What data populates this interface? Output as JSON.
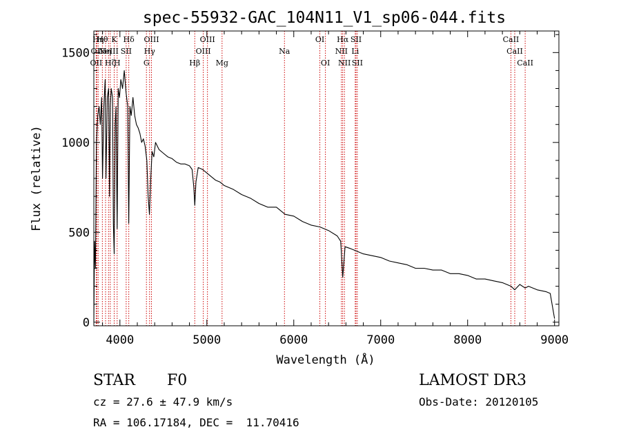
{
  "chart_data": {
    "type": "line",
    "title": "spec-55932-GAC_104N11_V1_sp06-044.fits",
    "xlabel": "Wavelength (Å)",
    "ylabel": "Flux (relative)",
    "xlim": [
      3700,
      9050
    ],
    "ylim": [
      -20,
      1620
    ],
    "xticks": [
      4000,
      5000,
      6000,
      7000,
      8000,
      9000
    ],
    "xtick_labels": [
      "4000",
      "5000",
      "6000",
      "7000",
      "8000",
      "9000"
    ],
    "yticks": [
      0,
      500,
      1000,
      1500
    ],
    "ytick_labels": [
      "0",
      "500",
      "1000",
      "1500"
    ],
    "grid": false,
    "legend": "none",
    "series": [
      {
        "name": "flux",
        "x": [
          3700,
          3708,
          3718,
          3730,
          3745,
          3760,
          3775,
          3790,
          3800,
          3815,
          3830,
          3840,
          3855,
          3870,
          3880,
          3889,
          3900,
          3915,
          3925,
          3934,
          3945,
          3955,
          3968,
          3980,
          3995,
          4010,
          4030,
          4050,
          4070,
          4090,
          4102,
          4115,
          4130,
          4150,
          4170,
          4190,
          4210,
          4230,
          4250,
          4270,
          4290,
          4310,
          4325,
          4340,
          4355,
          4370,
          4390,
          4410,
          4450,
          4500,
          4550,
          4600,
          4650,
          4700,
          4750,
          4800,
          4830,
          4850,
          4861,
          4875,
          4900,
          4950,
          5000,
          5050,
          5100,
          5150,
          5200,
          5300,
          5400,
          5500,
          5600,
          5700,
          5800,
          5900,
          6000,
          6100,
          6200,
          6300,
          6400,
          6500,
          6540,
          6563,
          6590,
          6650,
          6700,
          6800,
          6900,
          7000,
          7100,
          7200,
          7300,
          7400,
          7500,
          7600,
          7700,
          7800,
          7900,
          8000,
          8100,
          8200,
          8300,
          8400,
          8500,
          8542,
          8600,
          8662,
          8700,
          8800,
          8900,
          8950,
          9000
        ],
        "values": [
          0,
          450,
          300,
          1000,
          1150,
          1200,
          1100,
          1250,
          800,
          1200,
          1350,
          800,
          1250,
          1300,
          700,
          1200,
          1300,
          1250,
          550,
          380,
          1100,
          1200,
          520,
          1300,
          1250,
          1350,
          1300,
          1400,
          1280,
          1200,
          550,
          1200,
          1150,
          1250,
          1150,
          1100,
          1080,
          1050,
          1000,
          1020,
          980,
          900,
          700,
          600,
          800,
          950,
          920,
          1000,
          960,
          940,
          920,
          910,
          890,
          880,
          880,
          870,
          850,
          750,
          650,
          780,
          860,
          850,
          830,
          810,
          790,
          780,
          760,
          740,
          710,
          690,
          660,
          640,
          640,
          600,
          590,
          560,
          540,
          530,
          510,
          480,
          450,
          250,
          420,
          410,
          400,
          380,
          370,
          360,
          340,
          330,
          320,
          300,
          300,
          290,
          290,
          270,
          270,
          260,
          240,
          240,
          230,
          220,
          200,
          180,
          210,
          190,
          200,
          180,
          170,
          160,
          20
        ]
      }
    ],
    "line_annotations": [
      {
        "wavelength": 3727,
        "label": "OII",
        "row": 2
      },
      {
        "wavelength": 3735,
        "label": "OII",
        "row": 1
      },
      {
        "wavelength": 3750,
        "label": "Hη",
        "row": 0
      },
      {
        "wavelength": 3798,
        "label": "Hθ",
        "row": 0
      },
      {
        "wavelength": 3835,
        "label": "Hη",
        "row": 1
      },
      {
        "wavelength": 3869,
        "label": "NeIII",
        "row": 1
      },
      {
        "wavelength": 3889,
        "label": "Hζ",
        "row": 2
      },
      {
        "wavelength": 3934,
        "label": "K",
        "row": 0
      },
      {
        "wavelength": 3968,
        "label": "H",
        "row": 2
      },
      {
        "wavelength": 4072,
        "label": "SII",
        "row": 1
      },
      {
        "wavelength": 4102,
        "label": "Hδ",
        "row": 0
      },
      {
        "wavelength": 4305,
        "label": "G",
        "row": 2
      },
      {
        "wavelength": 4341,
        "label": "Hγ",
        "row": 1
      },
      {
        "wavelength": 4363,
        "label": "OIII",
        "row": 0
      },
      {
        "wavelength": 4861,
        "label": "Hβ",
        "row": 2
      },
      {
        "wavelength": 4959,
        "label": "OIII",
        "row": 1
      },
      {
        "wavelength": 5007,
        "label": "OIII",
        "row": 0
      },
      {
        "wavelength": 5175,
        "label": "Mg",
        "row": 2
      },
      {
        "wavelength": 5893,
        "label": "Na",
        "row": 1
      },
      {
        "wavelength": 6300,
        "label": "OI",
        "row": 0
      },
      {
        "wavelength": 6364,
        "label": "OI",
        "row": 2
      },
      {
        "wavelength": 6548,
        "label": "NII",
        "row": 1
      },
      {
        "wavelength": 6563,
        "label": "Hα",
        "row": 0
      },
      {
        "wavelength": 6583,
        "label": "NII",
        "row": 2
      },
      {
        "wavelength": 6707,
        "label": "Li",
        "row": 1
      },
      {
        "wavelength": 6716,
        "label": "SII",
        "row": 0
      },
      {
        "wavelength": 6731,
        "label": "SII",
        "row": 2
      },
      {
        "wavelength": 8498,
        "label": "CaII",
        "row": 0
      },
      {
        "wavelength": 8542,
        "label": "CaII",
        "row": 1
      },
      {
        "wavelength": 8662,
        "label": "CaII",
        "row": 2
      }
    ]
  },
  "info": {
    "object_class": "STAR",
    "subclass": "F0",
    "redshift": "cz = 27.6 ± 47.9 km/s",
    "coordinates": "RA = 106.17184, DEC =  11.70416",
    "survey": "LAMOST DR3",
    "obs_date": "Obs-Date: 20120105"
  },
  "colors": {
    "spectrum": "#000000",
    "line_markers": "#cc0000",
    "text": "#000000"
  }
}
